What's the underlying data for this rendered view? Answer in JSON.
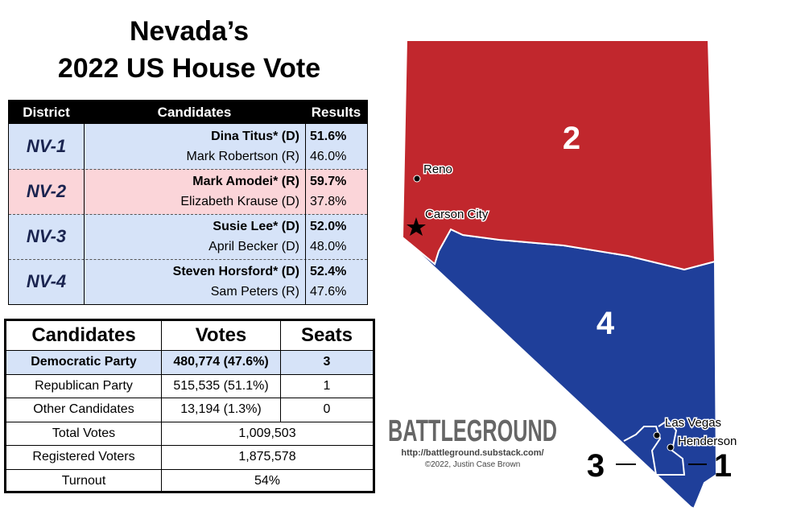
{
  "title": [
    "Nevada’s",
    "2022 US House Vote"
  ],
  "district_table": {
    "headers": [
      "District",
      "Candidates",
      "Results"
    ],
    "rows": [
      {
        "district": "NV-1",
        "candidates": [
          {
            "name": "Dina Titus* (D)",
            "result": "51.6%"
          },
          {
            "name": "Mark Robertson (R)",
            "result": "46.0%"
          }
        ]
      },
      {
        "district": "NV-2",
        "candidates": [
          {
            "name": "Mark Amodei* (R)",
            "result": "59.7%"
          },
          {
            "name": "Elizabeth Krause (D)",
            "result": "37.8%"
          }
        ]
      },
      {
        "district": "NV-3",
        "candidates": [
          {
            "name": "Susie Lee* (D)",
            "result": "52.0%"
          },
          {
            "name": "April Becker (D)",
            "result": "48.0%"
          }
        ]
      },
      {
        "district": "NV-4",
        "candidates": [
          {
            "name": "Steven Horsford* (D)",
            "result": "52.4%"
          },
          {
            "name": "Sam Peters (R)",
            "result": "47.6%"
          }
        ]
      }
    ]
  },
  "summary_table": {
    "headers": [
      "Candidates",
      "Votes",
      "Seats"
    ],
    "rows": [
      [
        "Democratic Party",
        "480,774 (47.6%)",
        "3"
      ],
      [
        "Republican Party",
        "515,535 (51.1%)",
        "1"
      ],
      [
        "Other Candidates",
        "13,194 (1.3%)",
        "0"
      ]
    ],
    "totals": [
      [
        "Total Votes",
        "1,009,503"
      ],
      [
        "Registered Voters",
        "1,875,578"
      ],
      [
        "Turnout",
        "54%"
      ]
    ]
  },
  "map": {
    "districts": [
      "2",
      "4",
      "3",
      "1"
    ],
    "cities": [
      "Reno",
      "Carson City",
      "Las Vegas",
      "Henderson"
    ]
  },
  "brand": {
    "name": "BATTLEGROUND",
    "url": "http://battleground.substack.com/",
    "credit": "©2022, Justin Case Brown"
  }
}
